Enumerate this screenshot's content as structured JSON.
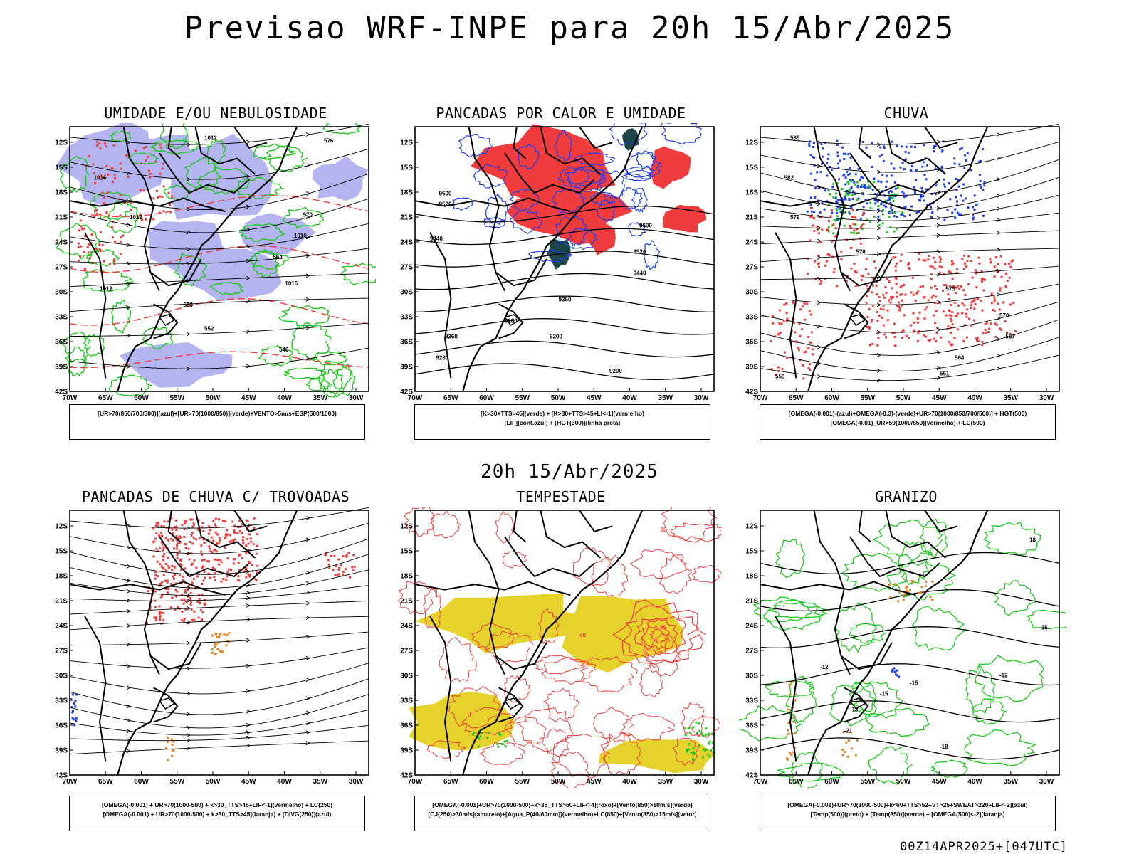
{
  "header": {
    "title": "Previsao WRF-INPE  para 20h 15/Abr/2025",
    "mid_date": "20h 15/Abr/2025",
    "footer": "00Z14APR2025+[047UTC]"
  },
  "axes": {
    "lat_labels": [
      "12S",
      "15S",
      "18S",
      "21S",
      "24S",
      "27S",
      "30S",
      "33S",
      "36S",
      "39S",
      "42S"
    ],
    "lon_labels": [
      "70W",
      "65W",
      "60W",
      "55W",
      "50W",
      "45W",
      "40W",
      "35W",
      "30W"
    ]
  },
  "panels": [
    {
      "title": "UMIDADE E/OU NEBULOSIDADE",
      "legend": [
        "[UR>70(850/700/500)](azul)+[UR>70(1000/850)](verde)+VENTO>5m/s+ESP(500/1000)"
      ],
      "contour_labels": [
        "1012",
        "1012",
        "1012",
        "1016",
        "1016",
        "1016",
        "570",
        "564",
        "558",
        "552",
        "546",
        "576"
      ]
    },
    {
      "title": "PANCADAS POR CALOR E UMIDADE",
      "legend": [
        "[K>30+TTS>45](verde) + [K>30+TTS>45+LI<-1](vermelho)",
        "[LIF](cont.azul) + [HGT(300)](linha preta)"
      ],
      "contour_labels": [
        "9600",
        "9520",
        "9440",
        "9600",
        "9520",
        "9440",
        "9360",
        "9280",
        "9200",
        "9360",
        "9280",
        "9200"
      ]
    },
    {
      "title": "CHUVA",
      "legend": [
        "[OMEGA(-0.001)-(azul)+OMEGA(-0.3)-(verde)+UR>70(1000/850/700/500)] + HGT(500)",
        "[OMEGA(-0.01)_UR>50(1000/850)(vermelho) + LC(500)"
      ],
      "contour_labels": [
        "585",
        "582",
        "579",
        "576",
        "573",
        "570",
        "567",
        "564",
        "561",
        "558"
      ]
    },
    {
      "title": "PANCADAS DE CHUVA C/ TROVOADAS",
      "legend": [
        "[OMEGA(-0.001) + UR>70(1000-500) + k>30_TTS>45+LIF<-1](vermelho) + LC(250)",
        "[OMEGA(-0.001) + UR>70(1000-500) + k>30_TTS>45](laranja) + [DIVG(250)](azul)"
      ],
      "contour_labels": []
    },
    {
      "title": "TEMPESTADE",
      "legend": [
        "[OMEGA(-0.001)+UR>70(1000-500)+k>35_TTS>50+LIF<-4](roxo)+[Vento(850)>10m/s](verde)",
        "[CJ(250)>30m/s](amarelo)+[Agua_P(40-60mm)](vermelho)+LC(850)+[Vento(850)>15m/s](vetor)"
      ],
      "contour_labels": [
        "40",
        "40",
        "50"
      ]
    },
    {
      "title": "GRANIZO",
      "legend": [
        "[OMEGA(-0.001)+UR>70(1000-500)+k<60+TTS>52+VT>25+SWEAT>220+LIF<-2](azul)",
        "[Temp(500)](preto) + [Temp(850)](verde) + [OMEGA(500)<-2](laranja)"
      ],
      "contour_labels": [
        "-12",
        "-12",
        "-15",
        "-15",
        "-18",
        "-18",
        "-21",
        "15",
        "18"
      ]
    }
  ],
  "colors": {
    "blue_shade": "#b4b4f0",
    "green": "#1ec81e",
    "red": "#f03c3c",
    "blue": "#1e3cf0",
    "yellow": "#e6d22d",
    "orange": "#e6801e",
    "dark_teal": "#1e4646",
    "black": "#000000"
  }
}
